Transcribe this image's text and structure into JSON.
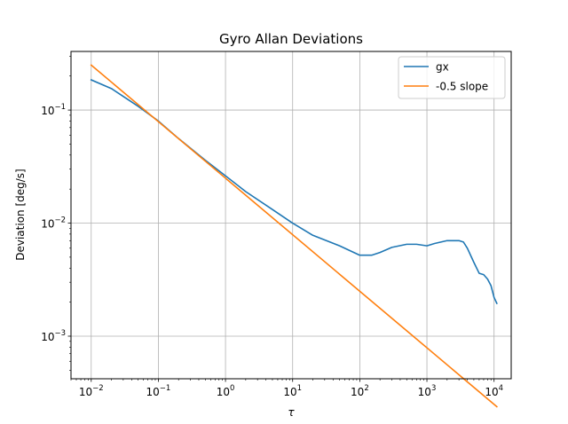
{
  "chart_data": {
    "type": "line",
    "title": "Gyro Allan Deviations",
    "xlabel": "τ",
    "ylabel": "Deviation [deg/s]",
    "xscale": "log",
    "yscale": "log",
    "xlim": [
      0.005,
      18000
    ],
    "ylim": [
      0.00042,
      0.33
    ],
    "x_ticks": [
      {
        "value": 0.01,
        "base": "10",
        "exp": "−2"
      },
      {
        "value": 0.1,
        "base": "10",
        "exp": "−1"
      },
      {
        "value": 1,
        "base": "10",
        "exp": "0"
      },
      {
        "value": 10,
        "base": "10",
        "exp": "1"
      },
      {
        "value": 100,
        "base": "10",
        "exp": "2"
      },
      {
        "value": 1000,
        "base": "10",
        "exp": "3"
      },
      {
        "value": 10000,
        "base": "10",
        "exp": "4"
      }
    ],
    "y_ticks": [
      {
        "value": 0.001,
        "base": "10",
        "exp": "−3"
      },
      {
        "value": 0.01,
        "base": "10",
        "exp": "−2"
      },
      {
        "value": 0.1,
        "base": "10",
        "exp": "−1"
      }
    ],
    "grid": true,
    "legend": "top-right",
    "series": [
      {
        "name": "gx",
        "color": "#1f77b4",
        "x": [
          0.01,
          0.02,
          0.03,
          0.05,
          0.1,
          0.2,
          0.5,
          1,
          2,
          5,
          10,
          20,
          50,
          100,
          150,
          200,
          300,
          500,
          700,
          1000,
          1300,
          2000,
          3000,
          3500,
          4000,
          5000,
          6000,
          7000,
          8000,
          9000,
          10000,
          11000
        ],
        "y": [
          0.185,
          0.155,
          0.132,
          0.108,
          0.08,
          0.056,
          0.036,
          0.0262,
          0.019,
          0.0132,
          0.01,
          0.0078,
          0.0063,
          0.0052,
          0.0052,
          0.0055,
          0.0061,
          0.0065,
          0.0065,
          0.0063,
          0.0066,
          0.007,
          0.007,
          0.0068,
          0.006,
          0.0045,
          0.0036,
          0.0035,
          0.0032,
          0.0028,
          0.0022,
          0.00195
        ]
      },
      {
        "name": "-0.5 slope",
        "color": "#ff7f0e",
        "x": [
          0.01,
          11000
        ],
        "y": [
          0.25,
          0.000238
        ]
      }
    ]
  }
}
